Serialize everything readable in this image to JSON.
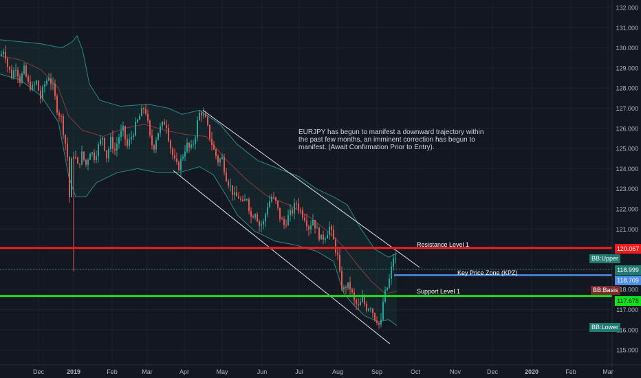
{
  "chart_data": {
    "type": "candlestick",
    "symbol": "EURJPY",
    "y_ticks": [
      "132.000",
      "131.000",
      "130.000",
      "129.000",
      "128.000",
      "127.000",
      "126.000",
      "125.000",
      "124.000",
      "123.000",
      "122.000",
      "121.000",
      "120.000",
      "119.000",
      "118.000",
      "117.000",
      "116.000",
      "115.000"
    ],
    "x_ticks": [
      "Dec",
      "2019",
      "Feb",
      "Mar",
      "Apr",
      "May",
      "Jun",
      "Jul",
      "Aug",
      "Sep",
      "Oct",
      "Nov",
      "Dec",
      "2020",
      "Feb",
      "Mar"
    ],
    "ylim": [
      114.5,
      132.4
    ],
    "price_path": [
      [
        0,
        129.6
      ],
      [
        5,
        130.0
      ],
      [
        10,
        129.1
      ],
      [
        16,
        128.6
      ],
      [
        22,
        129.1
      ],
      [
        28,
        128.4
      ],
      [
        34,
        128.9
      ],
      [
        40,
        128.2
      ],
      [
        46,
        128.0
      ],
      [
        52,
        128.3
      ],
      [
        58,
        127.5
      ],
      [
        64,
        128.2
      ],
      [
        70,
        128.6
      ],
      [
        76,
        128.0
      ],
      [
        82,
        127.0
      ],
      [
        88,
        126.5
      ],
      [
        93,
        125.5
      ],
      [
        97,
        124.6
      ],
      [
        100,
        122.6
      ],
      [
        104,
        124.9
      ],
      [
        108,
        124.6
      ],
      [
        112,
        124.1
      ],
      [
        118,
        124.7
      ],
      [
        124,
        124.2
      ],
      [
        130,
        124.9
      ],
      [
        136,
        124.6
      ],
      [
        142,
        125.1
      ],
      [
        148,
        125.6
      ],
      [
        154,
        124.6
      ],
      [
        160,
        125.4
      ],
      [
        166,
        124.9
      ],
      [
        172,
        125.6
      ],
      [
        178,
        125.9
      ],
      [
        184,
        125.1
      ],
      [
        190,
        125.6
      ],
      [
        196,
        126.1
      ],
      [
        202,
        126.6
      ],
      [
        208,
        127.0
      ],
      [
        212,
        126.8
      ],
      [
        216,
        125.6
      ],
      [
        222,
        125.0
      ],
      [
        228,
        125.8
      ],
      [
        234,
        126.1
      ],
      [
        240,
        126.4
      ],
      [
        246,
        125.2
      ],
      [
        252,
        124.4
      ],
      [
        258,
        124.0
      ],
      [
        264,
        124.6
      ],
      [
        270,
        125.2
      ],
      [
        276,
        124.9
      ],
      [
        282,
        125.5
      ],
      [
        288,
        126.7
      ],
      [
        292,
        126.8
      ],
      [
        298,
        126.4
      ],
      [
        304,
        125.6
      ],
      [
        310,
        124.9
      ],
      [
        316,
        124.4
      ],
      [
        322,
        124.5
      ],
      [
        328,
        123.6
      ],
      [
        334,
        123.1
      ],
      [
        340,
        122.6
      ],
      [
        346,
        122.6
      ],
      [
        352,
        122.2
      ],
      [
        358,
        122.6
      ],
      [
        364,
        121.6
      ],
      [
        370,
        121.9
      ],
      [
        376,
        121.2
      ],
      [
        382,
        121.3
      ],
      [
        388,
        122.2
      ],
      [
        394,
        122.6
      ],
      [
        400,
        122.3
      ],
      [
        406,
        121.6
      ],
      [
        412,
        121.2
      ],
      [
        418,
        121.6
      ],
      [
        424,
        121.9
      ],
      [
        430,
        122.3
      ],
      [
        436,
        121.9
      ],
      [
        442,
        121.6
      ],
      [
        448,
        121.1
      ],
      [
        454,
        121.5
      ],
      [
        460,
        120.9
      ],
      [
        466,
        120.5
      ],
      [
        472,
        120.7
      ],
      [
        478,
        121.1
      ],
      [
        484,
        120.4
      ],
      [
        490,
        119.6
      ],
      [
        494,
        118.4
      ],
      [
        498,
        117.9
      ],
      [
        502,
        118.2
      ],
      [
        508,
        118.1
      ],
      [
        514,
        117.4
      ],
      [
        520,
        117.1
      ],
      [
        526,
        117.5
      ],
      [
        532,
        117.1
      ],
      [
        538,
        117.2
      ],
      [
        544,
        116.6
      ],
      [
        548,
        116.5
      ],
      [
        552,
        116.0
      ],
      [
        556,
        117.4
      ],
      [
        560,
        117.9
      ],
      [
        564,
        118.3
      ],
      [
        568,
        119.0
      ],
      [
        572,
        119.8
      ],
      [
        576,
        119.1
      ]
    ],
    "bollinger": {
      "upper": [
        [
          0,
          130.4
        ],
        [
          30,
          130.3
        ],
        [
          60,
          130.2
        ],
        [
          90,
          130.0
        ],
        [
          105,
          130.3
        ],
        [
          112,
          130.6
        ],
        [
          120,
          129.9
        ],
        [
          130,
          128.2
        ],
        [
          145,
          127.4
        ],
        [
          175,
          127.1
        ],
        [
          215,
          127.2
        ],
        [
          245,
          127.0
        ],
        [
          265,
          126.7
        ],
        [
          290,
          126.9
        ],
        [
          320,
          126.2
        ],
        [
          345,
          125.2
        ],
        [
          375,
          124.4
        ],
        [
          405,
          124.0
        ],
        [
          435,
          123.6
        ],
        [
          460,
          123.0
        ],
        [
          485,
          122.6
        ],
        [
          505,
          122.2
        ],
        [
          525,
          121.0
        ],
        [
          545,
          120.0
        ],
        [
          565,
          119.6
        ],
        [
          577,
          119.8
        ]
      ],
      "basis": [
        [
          0,
          129.6
        ],
        [
          30,
          129.4
        ],
        [
          60,
          128.9
        ],
        [
          85,
          128.0
        ],
        [
          100,
          126.6
        ],
        [
          120,
          125.9
        ],
        [
          150,
          125.6
        ],
        [
          180,
          126.0
        ],
        [
          210,
          126.2
        ],
        [
          240,
          125.9
        ],
        [
          270,
          125.7
        ],
        [
          300,
          125.6
        ],
        [
          330,
          124.4
        ],
        [
          360,
          123.4
        ],
        [
          390,
          122.6
        ],
        [
          420,
          122.2
        ],
        [
          450,
          121.6
        ],
        [
          480,
          120.8
        ],
        [
          500,
          120.1
        ],
        [
          520,
          119.2
        ],
        [
          540,
          118.4
        ],
        [
          560,
          117.8
        ],
        [
          577,
          117.9
        ]
      ],
      "lower": [
        [
          0,
          128.7
        ],
        [
          30,
          128.4
        ],
        [
          60,
          127.6
        ],
        [
          85,
          126.3
        ],
        [
          100,
          123.6
        ],
        [
          110,
          122.6
        ],
        [
          125,
          122.6
        ],
        [
          140,
          123.3
        ],
        [
          170,
          123.8
        ],
        [
          200,
          124.0
        ],
        [
          230,
          123.8
        ],
        [
          260,
          123.8
        ],
        [
          290,
          124.1
        ],
        [
          310,
          123.7
        ],
        [
          330,
          122.6
        ],
        [
          345,
          121.7
        ],
        [
          370,
          120.9
        ],
        [
          400,
          120.4
        ],
        [
          430,
          120.2
        ],
        [
          460,
          119.9
        ],
        [
          485,
          119.4
        ],
        [
          500,
          117.8
        ],
        [
          515,
          117.2
        ],
        [
          530,
          116.7
        ],
        [
          550,
          116.4
        ],
        [
          565,
          116.5
        ],
        [
          577,
          116.2
        ]
      ]
    },
    "channel_upper": [
      [
        295,
        126.9
      ],
      [
        610,
        119.1
      ]
    ],
    "channel_lower": [
      [
        252,
        123.9
      ],
      [
        567,
        115.3
      ]
    ],
    "levels": {
      "resistance": {
        "label": "Resistance Level 1",
        "price": "120.067",
        "value": 120.067,
        "color": "#f21b1b"
      },
      "kpz": {
        "label": "Key Price Zone (KPZ)",
        "price": "118.709",
        "value": 118.709,
        "color": "#4c8ee6"
      },
      "support": {
        "label": "Support Level 1",
        "price": "117.678",
        "value": 117.678,
        "color": "#12e21b"
      }
    },
    "last_price": {
      "price": "118.999",
      "value": 118.999
    },
    "bb_labels": {
      "upper": "BB:Upper",
      "basis": "BB:Basis",
      "lower": "BB:Lower"
    },
    "colors": {
      "up": "#26a69a",
      "down": "#ef5350",
      "band": "#2a8a80",
      "basis": "#8b3a3a"
    }
  },
  "annotation": "EURJPY has begun to manifest a downward trajectory within the past few months, an imminent correction has begun to manifest. (Await Confirmation Prior to Entry)."
}
